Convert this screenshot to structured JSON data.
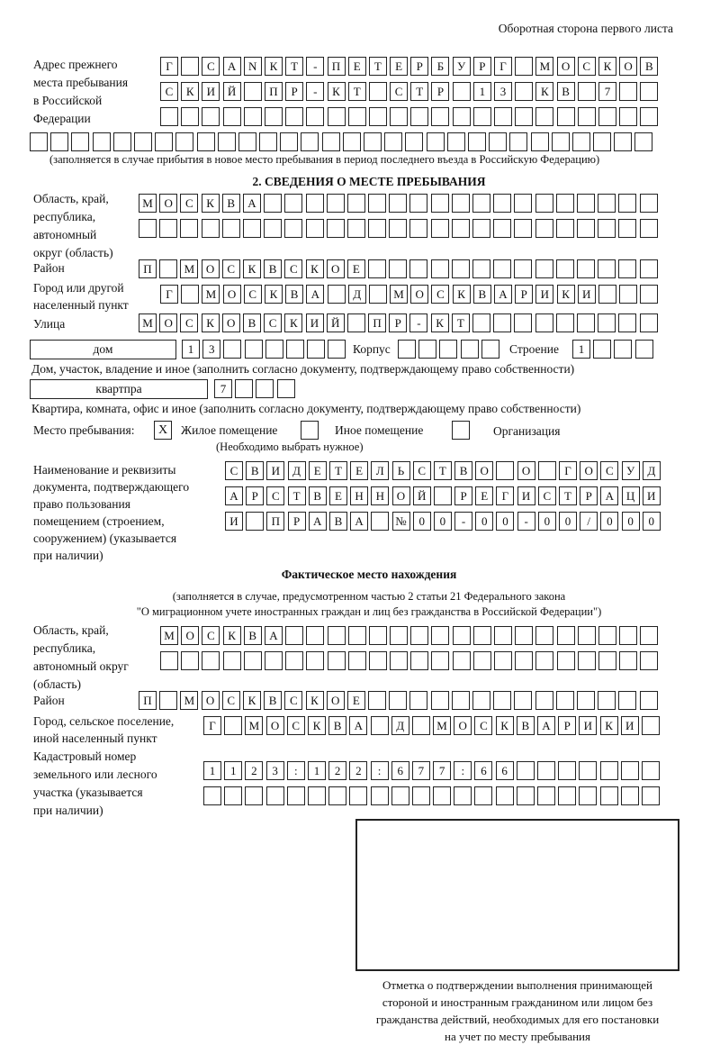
{
  "header": {
    "page_side": "Оборотная сторона первого листа"
  },
  "prev_address": {
    "label": [
      "Адрес прежнего",
      "места пребывания",
      "в Российской",
      "Федерации"
    ],
    "rows": [
      "Г СANКТ-ПЕТЕРБУРГ МОСКОВ",
      "СКИЙ ПР-КТ СТР 13 КВ 7",
      "",
      ""
    ],
    "note": "(заполняется в случае прибытия в новое место пребывания в период последнего въезда в Российскую Федерацию)"
  },
  "section2": {
    "title": "2. СВЕДЕНИЯ О МЕСТЕ ПРЕБЫВАНИЯ",
    "region_label": [
      "Область, край,",
      "республика,",
      "автономный",
      "округ (область)"
    ],
    "region_rows": [
      "МОСКВА",
      ""
    ],
    "district_label": "Район",
    "district_row": "П МОСКВСКОЕ",
    "city_label": [
      "Город или другой",
      "населенный пункт"
    ],
    "city_row": "Г МОСКВА Д МОСКВАРИКИ",
    "street_label": "Улица",
    "street_row": "МОСКОВСКИЙ ПР-КТ",
    "house_type": "дом",
    "house_row": "13",
    "korpus_label": "Корпус",
    "korpus_row": "",
    "building_label": "Строение",
    "building_row": "1",
    "house_note": "Дом, участок, владение и иное (заполнить согласно документу, подтверждающему право собственности)",
    "flat_type": "квартпра",
    "flat_row": "7",
    "flat_note": "Квартира, комната, офис и иное (заполнить согласно документу, подтверждающему право собственности)",
    "place_label": "Место пребывания:",
    "place_options": [
      {
        "label": "Жилое помещение",
        "mark": "Х",
        "checked": true
      },
      {
        "label": "Иное помещение",
        "mark": "",
        "checked": false
      },
      {
        "label": "Организация",
        "mark": "",
        "checked": false
      }
    ],
    "place_hint": "(Необходимо выбрать нужное)",
    "doc_label": [
      "Наименование и реквизиты",
      "документа, подтверждающего",
      "право пользования",
      "помещением (строением,",
      "сооружением) (указывается",
      "при наличии)"
    ],
    "doc_rows": [
      "СВИДЕТЕЛЬСТВО О ГОСУД",
      "АРСТВЕННОЙ РЕГИСТРАЦИ",
      "И ПРАВА №00-00-00/000"
    ]
  },
  "actual": {
    "title": "Фактическое место нахождения",
    "note1": "(заполняется в случае, предусмотренном частью 2 статьи 21 Федерального закона",
    "note2": "\"О миграционном учете иностранных граждан и лиц без гражданства в Российской Федерации\")",
    "region_label": [
      "Область, край,",
      "республика,",
      "автономный округ",
      "(область)"
    ],
    "region_rows": [
      "МОСКВА",
      ""
    ],
    "district_label": "Район",
    "district_row": "П МОСКВСКОЕ",
    "city_label": [
      "Город, сельское поселение,",
      "иной населенный пункт"
    ],
    "city_row": "Г МОСКВА Д МОСКВАРИКИ",
    "cadastre_label": [
      "Кадастровый номер",
      "земельного или лесного",
      "участка (указывается",
      "при наличии)"
    ],
    "cadastre_rows": [
      "1123:122:677:66",
      ""
    ]
  },
  "stamp_box": {
    "caption": [
      "Отметка о подтверждении выполнения принимающей",
      "стороной и иностранным гражданином или лицом без",
      "гражданства действий, необходимых для его постановки",
      "на учет по месту пребывания"
    ]
  }
}
